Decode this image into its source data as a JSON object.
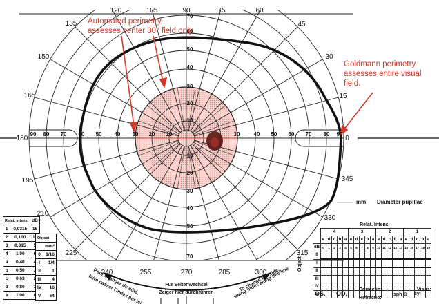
{
  "annotations": {
    "automated": [
      "Automated perimetry",
      "assesses center 30° field only."
    ],
    "goldmann": [
      "Goldmann perimetry",
      "assesses entire visual field."
    ]
  },
  "meridian_labels": {
    "0": "0",
    "15": "15",
    "30": "30",
    "45": "45",
    "60": "60",
    "75": "75",
    "90": "90",
    "105": "105",
    "120": "120",
    "135": "135",
    "150": "150",
    "165": "165",
    "180": "180",
    "195": "195",
    "210": "210",
    "225": "225",
    "240": "240",
    "255": "255",
    "270": "270",
    "285": "285",
    "300": "300",
    "315": "315",
    "330": "330",
    "345": "345"
  },
  "ring_labels": [
    "10",
    "20",
    "30",
    "40",
    "50",
    "60",
    "70",
    "80",
    "90"
  ],
  "bottom_text": {
    "center_line1": "Für Seitenwechsel",
    "center_line2": "Zeiger hier durchführen",
    "left_line1": "Pour changer de côté,",
    "left_line2": "faire passer l'index par ici",
    "right_line1": "To change the side,",
    "right_line2": "swing index along this line"
  },
  "pupil": {
    "unit": "mm",
    "label": "Diameter pupillae"
  },
  "eye_labels": {
    "os": "OS.",
    "od": "OD."
  },
  "correction": {
    "correctio": "Correctio:",
    "refractio": "Refractio:",
    "sph": "sph ⊖",
    "cyl": "cyl",
    "visus": "Visus:",
    "degree": "°"
  },
  "intensity_table": {
    "headers": [
      "Relat. Intens.",
      "dB"
    ],
    "rows": [
      [
        "1",
        "0,0315",
        "15"
      ],
      [
        "2",
        "0,100",
        "10"
      ],
      [
        "3",
        "0,315",
        "5"
      ],
      [
        "4",
        "1,00",
        "0"
      ],
      [
        "a",
        "0,40",
        "4"
      ],
      [
        "b",
        "0,50",
        "3"
      ],
      [
        "c",
        "0,63",
        "2"
      ],
      [
        "d",
        "0,80",
        "1"
      ],
      [
        "e",
        "1,00",
        "0"
      ]
    ]
  },
  "object_table": {
    "header": "Object",
    "unit": "mm²",
    "rows": [
      [
        "0",
        "1/16"
      ],
      [
        "I",
        "1/4"
      ],
      [
        "II",
        "1"
      ],
      [
        "III",
        "4"
      ],
      [
        "IV",
        "16"
      ],
      [
        "V",
        "64"
      ]
    ]
  },
  "grid_table": {
    "title": "Relat. Intens.",
    "groups": [
      "4",
      "3",
      "2",
      "1"
    ],
    "letters": [
      "e",
      "d",
      "c",
      "b",
      "a"
    ],
    "db_label": "dB",
    "db_values": [
      "0",
      "1",
      "2",
      "3",
      "4",
      "5",
      "6",
      "7",
      "8",
      "9",
      "10",
      "11",
      "12",
      "13",
      "14",
      "15",
      "16",
      "17",
      "18",
      "19"
    ],
    "object_label": "Object",
    "objects": [
      "0",
      "I",
      "II",
      "III",
      "IV",
      "V"
    ]
  },
  "colors": {
    "annotation": "#d2382c",
    "central_field": "#f4c9c2",
    "isopter": "#111111",
    "blind_spot": "#5a1a16"
  }
}
